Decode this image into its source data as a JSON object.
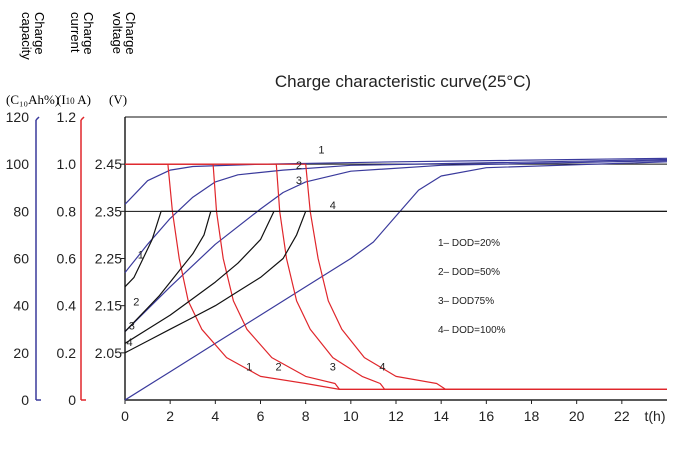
{
  "chart_data": {
    "type": "line",
    "title": "Charge characteristic curve(25°C)",
    "x": {
      "label": "t(h)",
      "ticks": [
        0,
        2,
        4,
        6,
        8,
        10,
        12,
        14,
        16,
        18,
        20,
        22
      ],
      "range": [
        0,
        24
      ]
    },
    "axes": {
      "capacity": {
        "title": [
          "Charge",
          "capacity"
        ],
        "unit": "(C₁₀Ah%)",
        "ticks": [
          "0",
          "20",
          "40",
          "60",
          "80",
          "100",
          "120"
        ],
        "range": [
          0,
          120
        ],
        "color": "#3a3a9c"
      },
      "current": {
        "title": [
          "Charge",
          "current"
        ],
        "unit_prefix": "(I",
        "unit_sub": "10",
        "unit_suffix": " A)",
        "ticks": [
          "0",
          "0.2",
          "0.4",
          "0.6",
          "0.8",
          "1.0",
          "1.2"
        ],
        "range": [
          0,
          1.2
        ],
        "color": "#e0262b"
      },
      "voltage": {
        "title": [
          "Charge",
          "voltage"
        ],
        "unit": "(V)",
        "ticks": [
          "2.05",
          "2.15",
          "2.25",
          "2.35",
          "2.45"
        ],
        "range": [
          1.95,
          2.55
        ],
        "color": "#222222"
      }
    },
    "legend": {
      "placement": "inside-right",
      "entries": [
        "1– DOD=20%",
        "2– DOD=50%",
        "3– DOD75%",
        "4– DOD=100%"
      ]
    },
    "series": [
      {
        "id": "1",
        "kind": "capacity",
        "axis": "capacity",
        "points": [
          [
            0,
            83
          ],
          [
            1,
            93
          ],
          [
            2,
            97.5
          ],
          [
            3,
            99
          ],
          [
            6,
            100
          ],
          [
            12,
            101
          ],
          [
            24,
            102.5
          ]
        ]
      },
      {
        "id": "2",
        "kind": "capacity",
        "axis": "capacity",
        "points": [
          [
            0,
            54
          ],
          [
            1,
            66
          ],
          [
            2,
            77
          ],
          [
            3,
            86
          ],
          [
            4,
            92.5
          ],
          [
            5,
            95.5
          ],
          [
            7,
            97.5
          ],
          [
            10,
            99.5
          ],
          [
            24,
            102
          ]
        ]
      },
      {
        "id": "3",
        "kind": "capacity",
        "axis": "capacity",
        "points": [
          [
            0,
            29
          ],
          [
            2,
            48
          ],
          [
            4,
            66
          ],
          [
            6,
            81
          ],
          [
            7,
            88
          ],
          [
            8,
            92.5
          ],
          [
            10,
            97
          ],
          [
            14,
            99.5
          ],
          [
            24,
            101.5
          ]
        ]
      },
      {
        "id": "4",
        "kind": "capacity",
        "axis": "capacity",
        "points": [
          [
            0,
            0
          ],
          [
            2,
            12
          ],
          [
            4,
            24
          ],
          [
            6,
            36
          ],
          [
            8,
            48
          ],
          [
            10,
            60
          ],
          [
            11,
            67
          ],
          [
            12,
            78
          ],
          [
            13,
            89
          ],
          [
            14,
            95
          ],
          [
            16,
            98.5
          ],
          [
            24,
            101
          ]
        ]
      },
      {
        "id": "1",
        "kind": "current",
        "axis": "current",
        "points": [
          [
            0,
            1.0
          ],
          [
            1.9,
            1.0
          ],
          [
            2.1,
            0.8
          ],
          [
            2.4,
            0.6
          ],
          [
            2.8,
            0.42
          ],
          [
            3.4,
            0.3
          ],
          [
            4.5,
            0.18
          ],
          [
            6,
            0.1
          ],
          [
            8,
            0.07
          ],
          [
            9.5,
            0.045
          ],
          [
            24,
            0.045
          ]
        ]
      },
      {
        "id": "2",
        "kind": "current",
        "axis": "current",
        "points": [
          [
            0,
            1.0
          ],
          [
            3.9,
            1.0
          ],
          [
            4.05,
            0.8
          ],
          [
            4.35,
            0.6
          ],
          [
            4.8,
            0.42
          ],
          [
            5.4,
            0.3
          ],
          [
            6.5,
            0.18
          ],
          [
            8,
            0.1
          ],
          [
            9.3,
            0.07
          ],
          [
            9.5,
            0.045
          ],
          [
            24,
            0.045
          ]
        ]
      },
      {
        "id": "3",
        "kind": "current",
        "axis": "current",
        "points": [
          [
            0,
            1.0
          ],
          [
            6.7,
            1.0
          ],
          [
            6.85,
            0.8
          ],
          [
            7.15,
            0.6
          ],
          [
            7.6,
            0.42
          ],
          [
            8.2,
            0.3
          ],
          [
            9.2,
            0.18
          ],
          [
            10.5,
            0.1
          ],
          [
            11.3,
            0.07
          ],
          [
            11.5,
            0.045
          ],
          [
            24,
            0.045
          ]
        ]
      },
      {
        "id": "4",
        "kind": "current",
        "axis": "current",
        "points": [
          [
            0,
            1.0
          ],
          [
            8.0,
            1.0
          ],
          [
            8.2,
            0.8
          ],
          [
            8.55,
            0.6
          ],
          [
            9.0,
            0.42
          ],
          [
            9.6,
            0.3
          ],
          [
            10.6,
            0.18
          ],
          [
            12,
            0.1
          ],
          [
            13.8,
            0.07
          ],
          [
            14.2,
            0.045
          ],
          [
            24,
            0.045
          ]
        ]
      },
      {
        "id": "1",
        "kind": "voltage",
        "axis": "voltage",
        "points": [
          [
            0,
            2.19
          ],
          [
            0.4,
            2.21
          ],
          [
            0.8,
            2.25
          ],
          [
            1.2,
            2.29
          ],
          [
            1.6,
            2.35
          ],
          [
            24,
            2.35
          ]
        ]
      },
      {
        "id": "2",
        "kind": "voltage",
        "axis": "voltage",
        "points": [
          [
            0,
            2.095
          ],
          [
            0.5,
            2.12
          ],
          [
            1,
            2.145
          ],
          [
            1.5,
            2.17
          ],
          [
            2,
            2.2
          ],
          [
            2.5,
            2.23
          ],
          [
            3,
            2.26
          ],
          [
            3.5,
            2.3
          ],
          [
            3.8,
            2.35
          ]
        ]
      },
      {
        "id": "3",
        "kind": "voltage",
        "axis": "voltage",
        "points": [
          [
            0,
            2.07
          ],
          [
            1,
            2.1
          ],
          [
            2,
            2.13
          ],
          [
            3,
            2.165
          ],
          [
            4,
            2.2
          ],
          [
            5,
            2.24
          ],
          [
            6,
            2.29
          ],
          [
            6.6,
            2.35
          ]
        ]
      },
      {
        "id": "4",
        "kind": "voltage",
        "axis": "voltage",
        "points": [
          [
            0,
            2.05
          ],
          [
            1,
            2.075
          ],
          [
            2,
            2.1
          ],
          [
            3,
            2.125
          ],
          [
            4,
            2.15
          ],
          [
            5,
            2.18
          ],
          [
            6,
            2.21
          ],
          [
            7,
            2.25
          ],
          [
            7.6,
            2.3
          ],
          [
            8,
            2.35
          ]
        ]
      }
    ],
    "reference_lines": [
      {
        "axis": "voltage",
        "value": 2.45
      },
      {
        "axis": "voltage",
        "value": 2.35
      },
      {
        "axis": "current",
        "value": 1.2
      }
    ],
    "curve_labels": [
      {
        "text": "1",
        "kind": "capacity",
        "x": 8.7,
        "y": 104.5
      },
      {
        "text": "2",
        "kind": "capacity",
        "x": 7.7,
        "y": 98
      },
      {
        "text": "3",
        "kind": "capacity",
        "x": 7.7,
        "y": 91.5
      },
      {
        "text": "4",
        "kind": "capacity",
        "x": 9.2,
        "y": 81
      },
      {
        "text": "1",
        "kind": "voltage",
        "x": 0.7,
        "y": 2.25
      },
      {
        "text": "2",
        "kind": "voltage",
        "x": 0.5,
        "y": 2.15
      },
      {
        "text": "3",
        "kind": "voltage",
        "x": 0.3,
        "y": 2.1
      },
      {
        "text": "4",
        "kind": "voltage",
        "x": 0.2,
        "y": 2.065
      },
      {
        "text": "1",
        "kind": "current",
        "x": 5.5,
        "y": 0.125
      },
      {
        "text": "2",
        "kind": "current",
        "x": 6.8,
        "y": 0.125
      },
      {
        "text": "3",
        "kind": "current",
        "x": 9.2,
        "y": 0.125
      },
      {
        "text": "4",
        "kind": "current",
        "x": 11.4,
        "y": 0.125
      }
    ],
    "series_colors": {
      "capacity": "#3a3a9c",
      "current": "#e0262b",
      "voltage": "#111111"
    },
    "grid": false
  }
}
